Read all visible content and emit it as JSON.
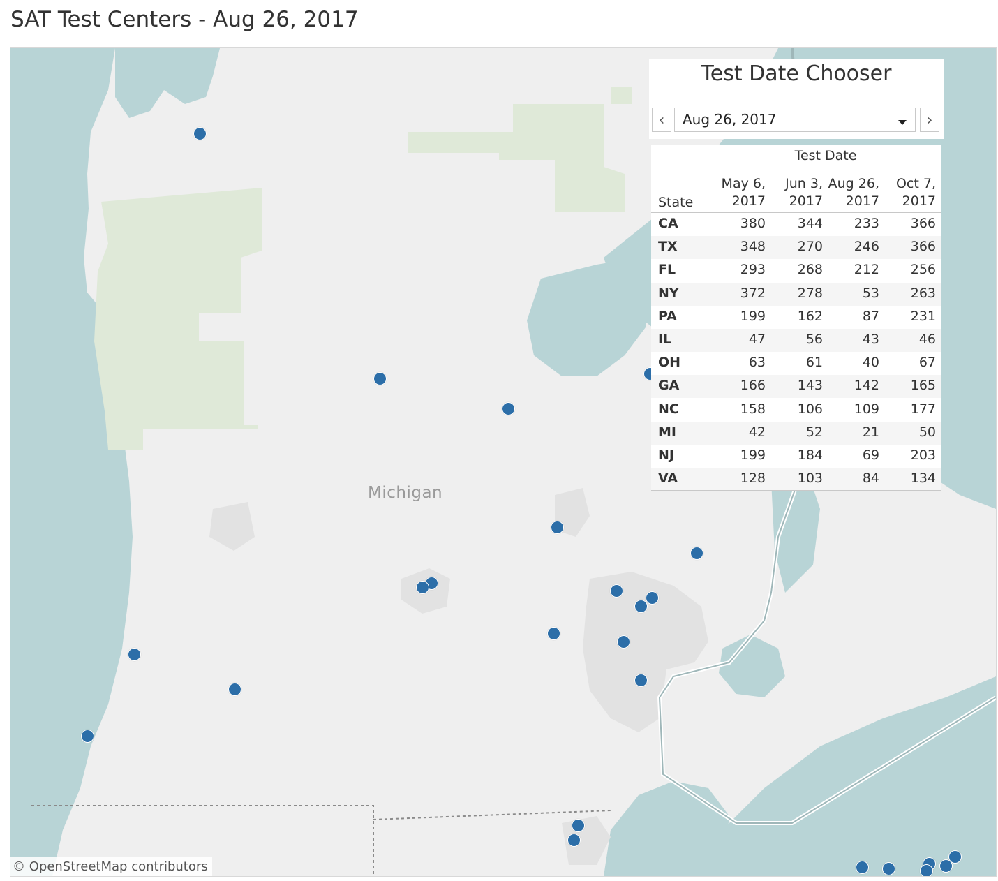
{
  "title": "SAT Test Centers - Aug 26, 2017",
  "map": {
    "region_label": "Michigan",
    "attribution": "© OpenStreetMap contributors",
    "marker_color": "#2c6ea8",
    "water_color": "#b8d4d6",
    "land_color": "#efefef",
    "park_color": "#dfe9d8"
  },
  "chooser": {
    "title": "Test Date Chooser",
    "selected": "Aug 26, 2017",
    "prev_icon": "‹",
    "next_icon": "›"
  },
  "table": {
    "group_header": "Test Date",
    "state_header": "State",
    "columns": [
      {
        "l1": "May 6,",
        "l2": "2017"
      },
      {
        "l1": "Jun 3,",
        "l2": "2017"
      },
      {
        "l1": "Aug 26,",
        "l2": "2017"
      },
      {
        "l1": "Oct 7,",
        "l2": "2017"
      }
    ],
    "rows": [
      {
        "state": "CA",
        "values": [
          "380",
          "344",
          "233",
          "366"
        ]
      },
      {
        "state": "TX",
        "values": [
          "348",
          "270",
          "246",
          "366"
        ]
      },
      {
        "state": "FL",
        "values": [
          "293",
          "268",
          "212",
          "256"
        ]
      },
      {
        "state": "NY",
        "values": [
          "372",
          "278",
          "53",
          "263"
        ]
      },
      {
        "state": "PA",
        "values": [
          "199",
          "162",
          "87",
          "231"
        ]
      },
      {
        "state": "IL",
        "values": [
          "47",
          "56",
          "43",
          "46"
        ]
      },
      {
        "state": "OH",
        "values": [
          "63",
          "61",
          "40",
          "67"
        ]
      },
      {
        "state": "GA",
        "values": [
          "166",
          "143",
          "142",
          "165"
        ]
      },
      {
        "state": "NC",
        "values": [
          "158",
          "106",
          "109",
          "177"
        ]
      },
      {
        "state": "MI",
        "values": [
          "42",
          "52",
          "21",
          "50"
        ]
      },
      {
        "state": "NJ",
        "values": [
          "199",
          "184",
          "69",
          "203"
        ]
      },
      {
        "state": "VA",
        "values": [
          "128",
          "103",
          "84",
          "134"
        ]
      }
    ]
  }
}
